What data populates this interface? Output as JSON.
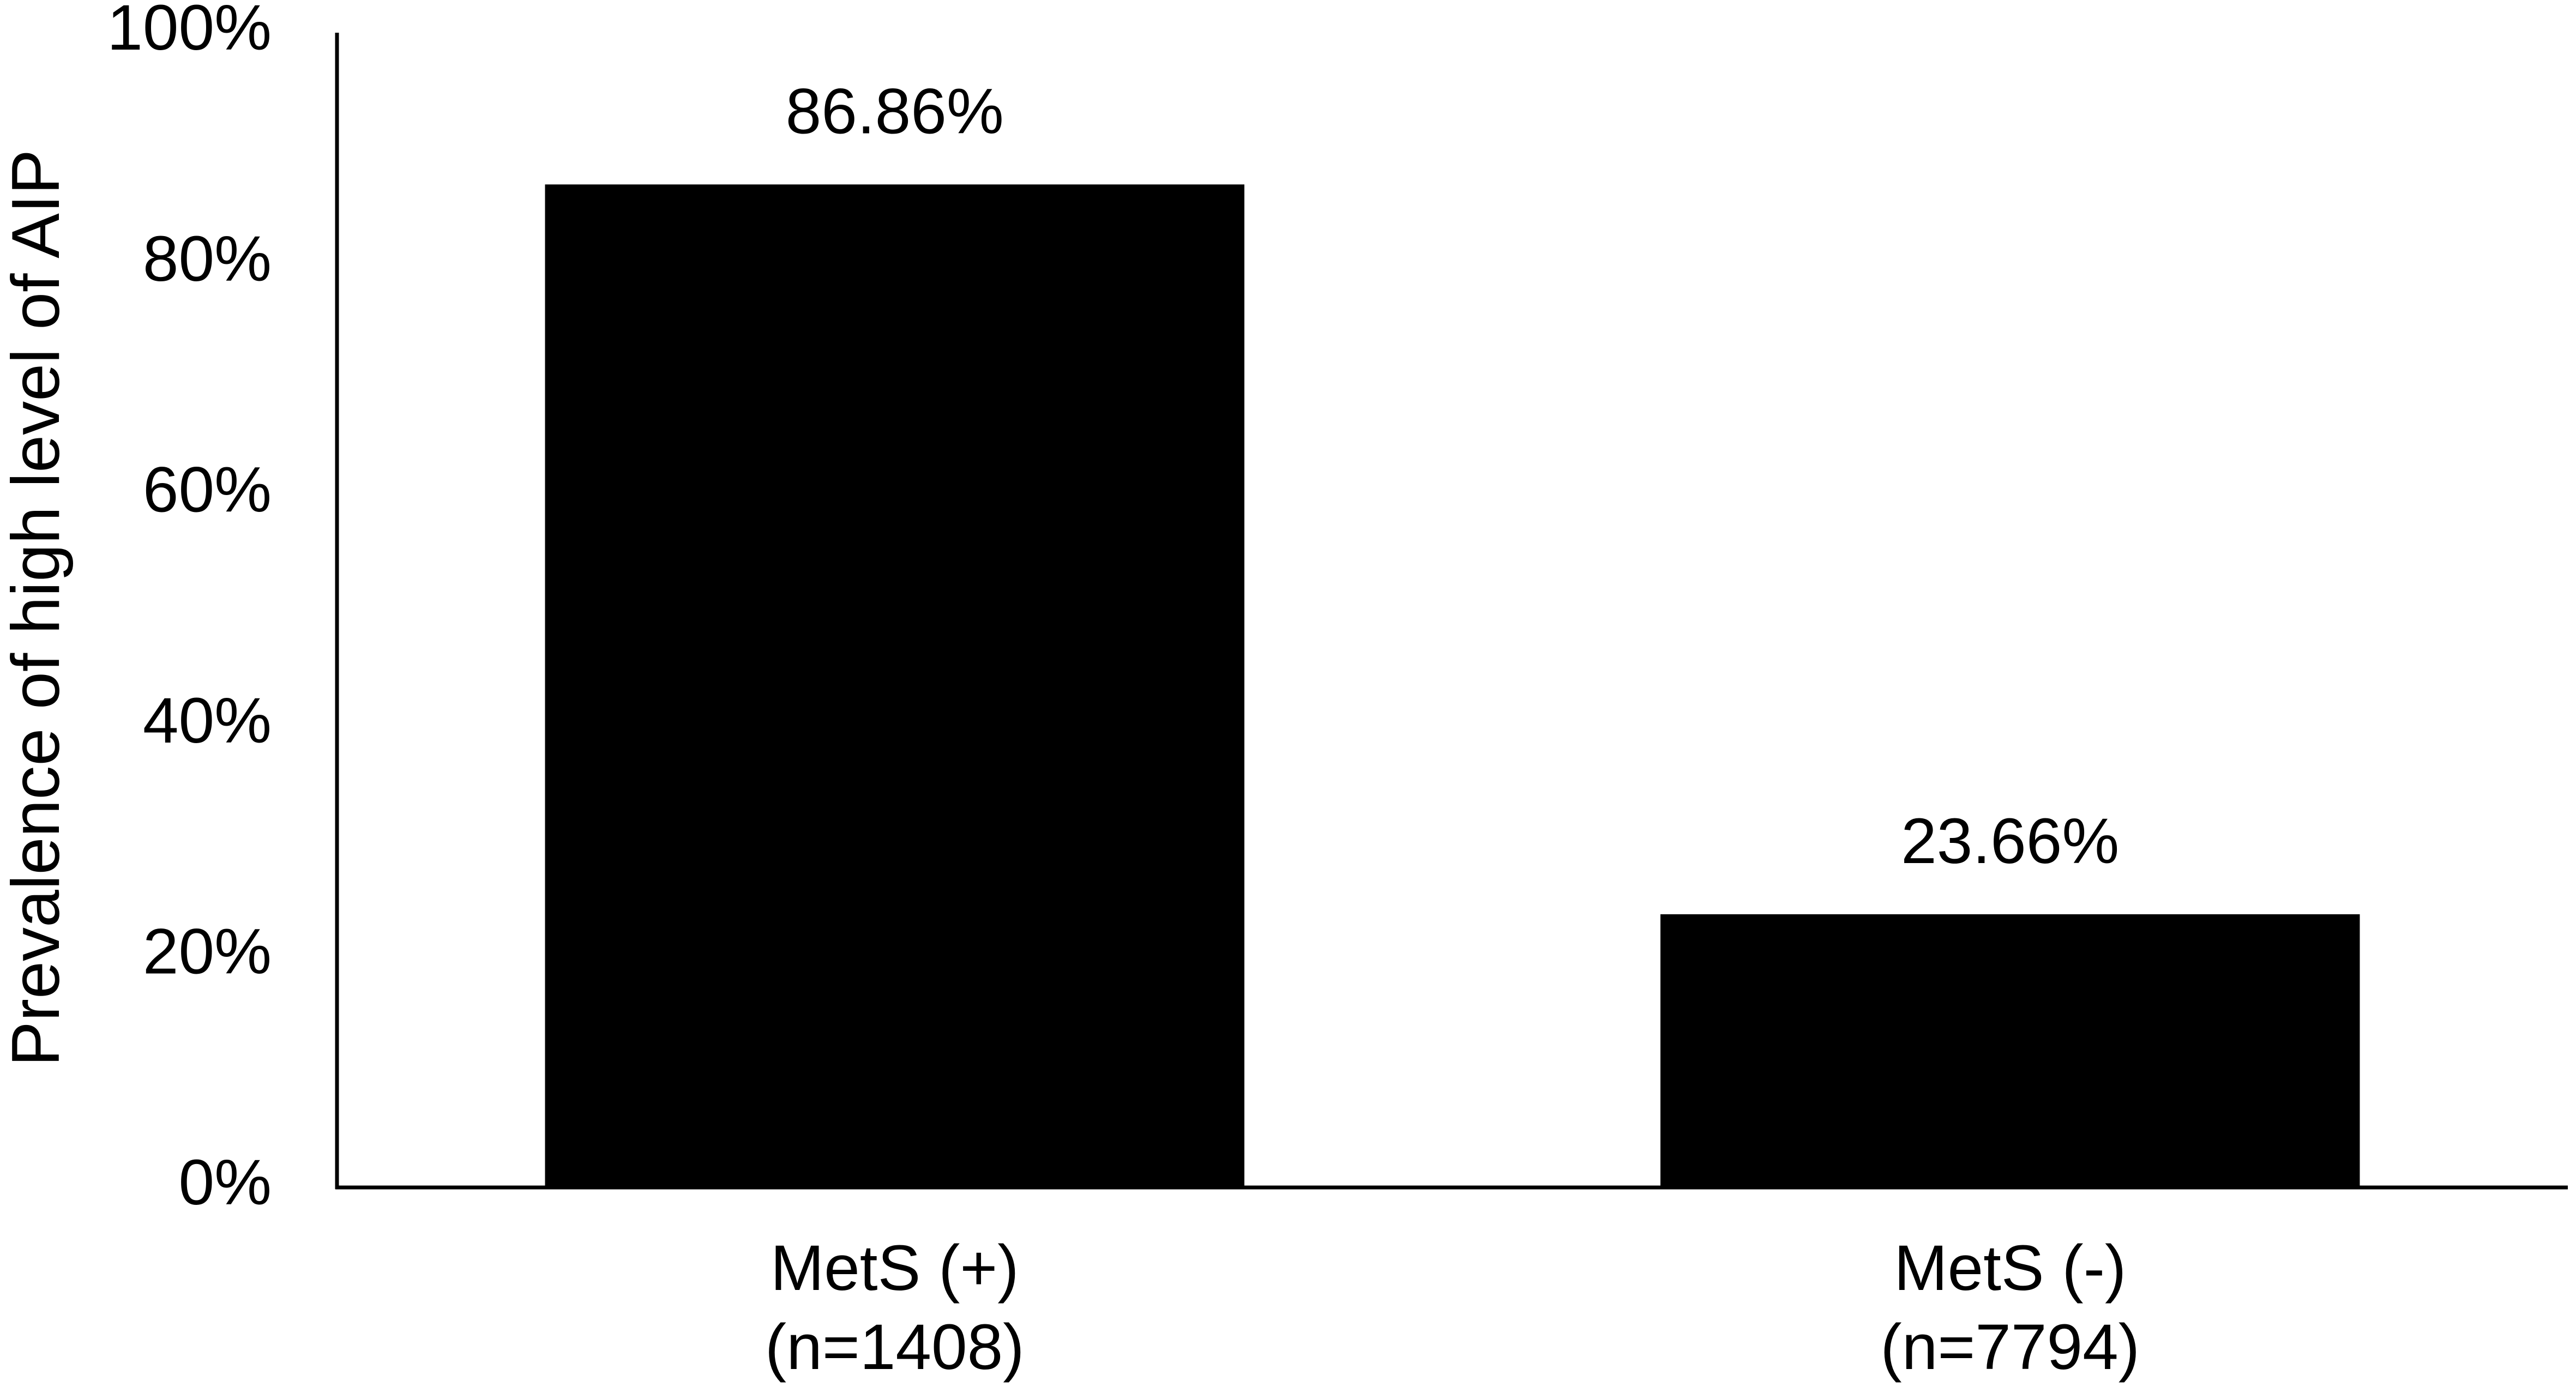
{
  "chart_data": {
    "type": "bar",
    "y_label": "Prevalence of high level of AIP",
    "categories": [
      [
        "MetS (+)",
        "(n=1408)"
      ],
      [
        "MetS (-)",
        "(n=7794)"
      ]
    ],
    "values": [
      86.86,
      23.66
    ],
    "value_labels": [
      "86.86%",
      "23.66%"
    ],
    "color": "#000000",
    "ylim": [
      0,
      100
    ],
    "yticks": [
      {
        "value": 0,
        "label": "0%"
      },
      {
        "value": 20,
        "label": "20%"
      },
      {
        "value": 40,
        "label": "40%"
      },
      {
        "value": 60,
        "label": "60%"
      },
      {
        "value": 80,
        "label": "80%"
      },
      {
        "value": 100,
        "label": "100%"
      }
    ],
    "grid": false
  }
}
